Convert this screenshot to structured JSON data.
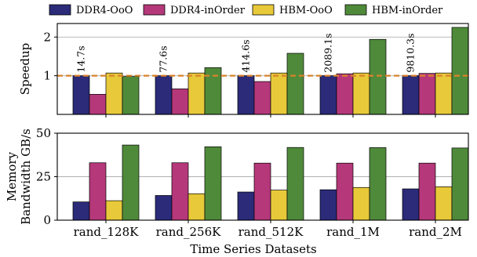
{
  "chart_data": [
    {
      "type": "bar",
      "ylabel": "Speedup",
      "ylim": [
        0,
        2.35
      ],
      "yticks": [
        1,
        2
      ],
      "grid": "horizontal",
      "reference_line": {
        "y": 1,
        "color": "#d9822b",
        "style": "dashed"
      },
      "categories": [
        "rand_128K",
        "rand_256K",
        "rand_512K",
        "rand_1M",
        "rand_2M"
      ],
      "annotations": [
        "14.7s",
        "77.6s",
        "414.6s",
        "2089.1s",
        "9810.3s"
      ],
      "series": [
        {
          "name": "DDR4-OoO",
          "color": "#2b2b7a",
          "values": [
            1.0,
            1.0,
            1.0,
            1.0,
            1.0
          ]
        },
        {
          "name": "DDR4-inOrder",
          "color": "#b5387a",
          "values": [
            0.52,
            0.66,
            0.85,
            1.05,
            1.06
          ]
        },
        {
          "name": "HBM-OoO",
          "color": "#e8c93a",
          "values": [
            1.07,
            1.07,
            1.07,
            1.07,
            1.07
          ]
        },
        {
          "name": "HBM-inOrder",
          "color": "#4f8a3a",
          "values": [
            0.98,
            1.21,
            1.58,
            1.94,
            2.25
          ]
        }
      ]
    },
    {
      "type": "bar",
      "ylabel": [
        "Memory",
        "Bandwidth GB/s"
      ],
      "xlabel": "Time Series Datasets",
      "ylim": [
        0,
        50
      ],
      "yticks": [
        0,
        25,
        50
      ],
      "grid": "horizontal",
      "categories": [
        "rand_128K",
        "rand_256K",
        "rand_512K",
        "rand_1M",
        "rand_2M"
      ],
      "series": [
        {
          "name": "DDR4-OoO",
          "color": "#2b2b7a",
          "values": [
            10.5,
            14.2,
            16.2,
            17.5,
            18.0
          ]
        },
        {
          "name": "DDR4-inOrder",
          "color": "#b5387a",
          "values": [
            33.0,
            33.0,
            32.8,
            32.8,
            32.8
          ]
        },
        {
          "name": "HBM-OoO",
          "color": "#e8c93a",
          "values": [
            11.2,
            15.2,
            17.3,
            18.8,
            19.2
          ]
        },
        {
          "name": "HBM-inOrder",
          "color": "#4f8a3a",
          "values": [
            43.2,
            42.2,
            41.8,
            41.7,
            41.5
          ]
        }
      ]
    }
  ],
  "legend": {
    "placement": "top",
    "items": [
      "DDR4-OoO",
      "DDR4-inOrder",
      "HBM-OoO",
      "HBM-inOrder"
    ]
  }
}
